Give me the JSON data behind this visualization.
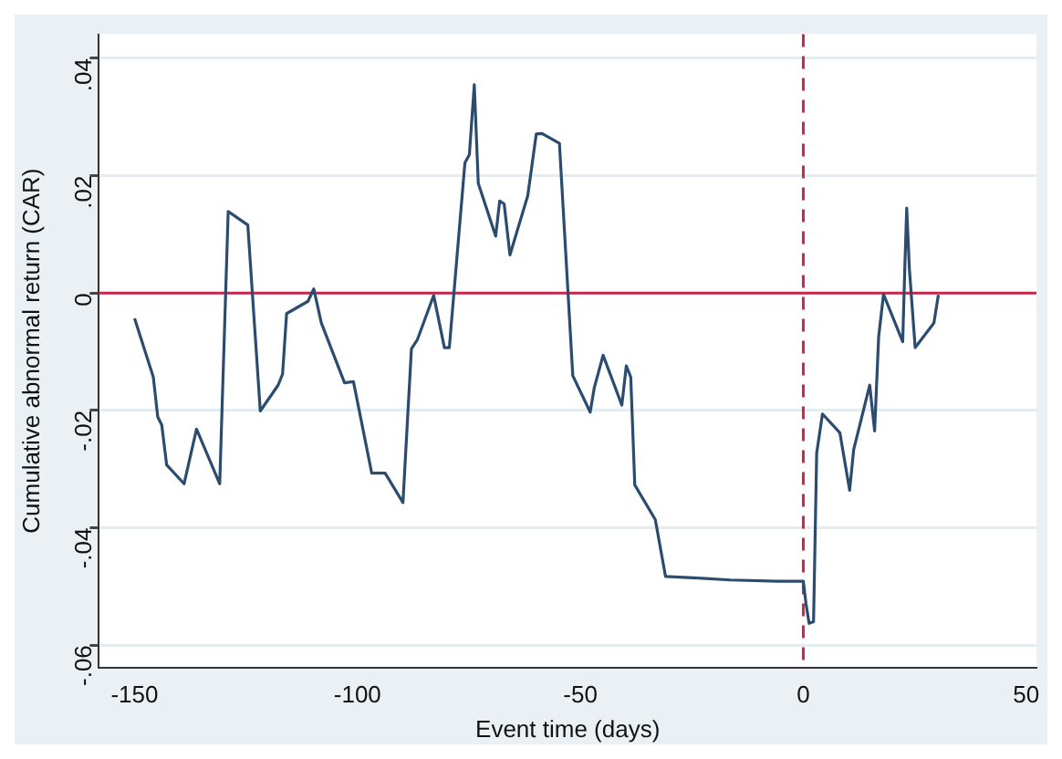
{
  "chart_data": {
    "type": "line",
    "xlabel": "Event time (days)",
    "ylabel": "Cumulative abnormal return (CAR)",
    "xlim": [
      -158,
      52.3
    ],
    "xticks": [
      -150,
      -100,
      -50,
      0,
      50
    ],
    "ylim": [
      -0.0638,
      0.0441
    ],
    "yticks": [
      {
        "value": -0.06,
        "label": "-.06"
      },
      {
        "value": -0.04,
        "label": "-.04"
      },
      {
        "value": -0.02,
        "label": "-.02"
      },
      {
        "value": 0,
        "label": "0"
      },
      {
        "value": 0.02,
        "label": ".02"
      },
      {
        "value": 0.04,
        "label": ".04"
      }
    ],
    "grid": "y",
    "marker": "none",
    "line_style": "solid",
    "ref_lines": [
      {
        "axis": "y",
        "value": 0,
        "color": "#c8264a",
        "line_style": "solid"
      },
      {
        "axis": "x",
        "value": 0,
        "color": "#c8264a",
        "line_style": "dashed"
      }
    ],
    "series": [
      {
        "color": "#2b4c6f",
        "x": [
          -150,
          -145.8,
          -144.8,
          -143.9,
          -142.8,
          -138.9,
          -136.1,
          -130.9,
          -129,
          -124.6,
          -121.8,
          -117.8,
          -116.8,
          -115.9,
          -111.1,
          -109.8,
          -108.1,
          -102.9,
          -100.9,
          -96.8,
          -93.8,
          -89.8,
          -87.9,
          -86.6,
          -82.9,
          -80.5,
          -79.4,
          -75.9,
          -74.9,
          -73.8,
          -72.9,
          -69,
          -68.1,
          -67.1,
          -65.8,
          -61.8,
          -59.9,
          -58.6,
          -54.7,
          -51.7,
          -47.8,
          -46.9,
          -44.9,
          -40.7,
          -39.7,
          -38.7,
          -37.8,
          -33.2,
          -30.9,
          -22.8,
          -16.4,
          -5.9,
          0,
          0.6,
          1.3,
          2.3,
          3,
          4.3,
          8.2,
          10.4,
          11.3,
          14.9,
          16,
          16.9,
          18,
          22.3,
          22.8,
          23.2,
          23.8,
          25.1,
          29.3,
          30.3
        ],
        "values": [
          -0.0043,
          -0.0143,
          -0.0211,
          -0.0225,
          -0.0293,
          -0.0325,
          -0.0232,
          -0.0325,
          0.0139,
          0.0116,
          -0.0201,
          -0.0157,
          -0.0138,
          -0.0035,
          -0.0014,
          0.0007,
          -0.0051,
          -0.0153,
          -0.0151,
          -0.0307,
          -0.0307,
          -0.0357,
          -0.0095,
          -0.008,
          -0.0004,
          -0.0093,
          -0.0093,
          0.0222,
          0.0236,
          0.0355,
          0.0187,
          0.0097,
          0.0157,
          0.0152,
          0.0065,
          0.0166,
          0.0271,
          0.0272,
          0.0255,
          -0.0141,
          -0.0203,
          -0.0162,
          -0.0106,
          -0.0191,
          -0.0124,
          -0.0143,
          -0.0327,
          -0.0386,
          -0.0483,
          -0.0486,
          -0.0489,
          -0.0491,
          -0.0491,
          -0.0529,
          -0.0563,
          -0.056,
          -0.0273,
          -0.0206,
          -0.0238,
          -0.0336,
          -0.0267,
          -0.0157,
          -0.0235,
          -0.0075,
          -0.0002,
          -0.0083,
          0.005,
          0.0145,
          0.0041,
          -0.0093,
          -0.0051,
          -0.0003
        ]
      }
    ]
  }
}
